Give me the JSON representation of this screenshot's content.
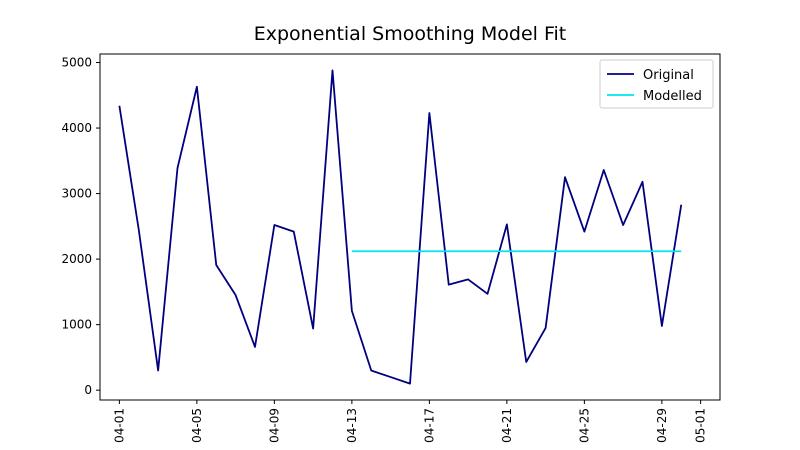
{
  "chart_data": {
    "type": "line",
    "title": "Exponential Smoothing Model Fit",
    "xlabel": "",
    "ylabel": "",
    "x_range": [
      "2024-03-31",
      "2024-05-02"
    ],
    "ylim": [
      -150,
      5130
    ],
    "y_ticks": [
      0,
      1000,
      2000,
      3000,
      4000,
      5000
    ],
    "x_ticks": [
      {
        "date": "2024-04-01",
        "label": "04-01"
      },
      {
        "date": "2024-04-05",
        "label": "04-05"
      },
      {
        "date": "2024-04-09",
        "label": "04-09"
      },
      {
        "date": "2024-04-13",
        "label": "04-13"
      },
      {
        "date": "2024-04-17",
        "label": "04-17"
      },
      {
        "date": "2024-04-21",
        "label": "04-21"
      },
      {
        "date": "2024-04-25",
        "label": "04-25"
      },
      {
        "date": "2024-04-29",
        "label": "04-29"
      },
      {
        "date": "2024-05-01",
        "label": "05-01"
      }
    ],
    "grid": false,
    "legend_position": "top-right",
    "series": [
      {
        "name": "Original",
        "color": "#000080",
        "x": [
          "2024-04-01",
          "2024-04-02",
          "2024-04-03",
          "2024-04-04",
          "2024-04-05",
          "2024-04-06",
          "2024-04-07",
          "2024-04-08",
          "2024-04-09",
          "2024-04-10",
          "2024-04-11",
          "2024-04-12",
          "2024-04-13",
          "2024-04-14",
          "2024-04-15",
          "2024-04-16",
          "2024-04-17",
          "2024-04-18",
          "2024-04-19",
          "2024-04-20",
          "2024-04-21",
          "2024-04-22",
          "2024-04-23",
          "2024-04-24",
          "2024-04-25",
          "2024-04-26",
          "2024-04-27",
          "2024-04-28",
          "2024-04-29",
          "2024-04-30"
        ],
        "values": [
          4340,
          2450,
          300,
          3390,
          4630,
          1910,
          1450,
          660,
          2520,
          2420,
          940,
          4880,
          1210,
          300,
          200,
          100,
          4230,
          1610,
          1690,
          1470,
          2530,
          430,
          950,
          3250,
          2420,
          3360,
          2520,
          3180,
          980,
          2830
        ]
      },
      {
        "name": "Modelled",
        "color": "#00e5ee",
        "x": [
          "2024-04-13",
          "2024-04-14",
          "2024-04-15",
          "2024-04-16",
          "2024-04-17",
          "2024-04-18",
          "2024-04-19",
          "2024-04-20",
          "2024-04-21",
          "2024-04-22",
          "2024-04-23",
          "2024-04-24",
          "2024-04-25",
          "2024-04-26",
          "2024-04-27",
          "2024-04-28",
          "2024-04-29",
          "2024-04-30"
        ],
        "values": [
          2120,
          2120,
          2120,
          2120,
          2120,
          2120,
          2120,
          2120,
          2120,
          2120,
          2120,
          2120,
          2120,
          2120,
          2120,
          2120,
          2120,
          2120
        ]
      }
    ]
  }
}
